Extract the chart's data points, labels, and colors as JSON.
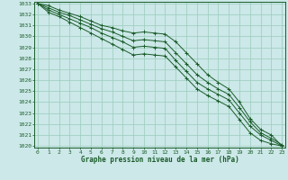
{
  "title": "Graphe pression niveau de la mer (hPa)",
  "bg_color": "#cce8e8",
  "grid_color": "#99ccbb",
  "line_color": "#1a5c2a",
  "x_ticks": [
    0,
    1,
    2,
    3,
    4,
    5,
    6,
    7,
    8,
    9,
    10,
    11,
    12,
    13,
    14,
    15,
    16,
    17,
    18,
    19,
    20,
    21,
    22,
    23
  ],
  "y_min": 1020,
  "y_max": 1033,
  "y_ticks": [
    1020,
    1021,
    1022,
    1023,
    1024,
    1025,
    1026,
    1027,
    1028,
    1029,
    1030,
    1031,
    1032,
    1033
  ],
  "series": [
    [
      1033.0,
      1032.8,
      1032.4,
      1032.1,
      1031.8,
      1031.4,
      1031.0,
      1030.8,
      1030.5,
      1030.3,
      1030.4,
      1030.3,
      1030.2,
      1029.5,
      1028.5,
      1027.5,
      1026.5,
      1025.8,
      1025.2,
      1024.0,
      1022.5,
      1021.5,
      1021.0,
      1020.0
    ],
    [
      1033.0,
      1032.6,
      1032.2,
      1031.9,
      1031.5,
      1031.1,
      1030.7,
      1030.4,
      1030.0,
      1029.6,
      1029.7,
      1029.6,
      1029.5,
      1028.5,
      1027.5,
      1026.5,
      1025.8,
      1025.2,
      1024.7,
      1023.5,
      1022.2,
      1021.2,
      1020.7,
      1020.1
    ],
    [
      1033.0,
      1032.4,
      1032.0,
      1031.6,
      1031.2,
      1030.8,
      1030.3,
      1029.9,
      1029.5,
      1029.0,
      1029.1,
      1029.0,
      1028.9,
      1027.8,
      1026.8,
      1025.8,
      1025.2,
      1024.7,
      1024.2,
      1023.0,
      1021.8,
      1021.0,
      1020.5,
      1020.0
    ],
    [
      1033.0,
      1032.2,
      1031.8,
      1031.3,
      1030.8,
      1030.3,
      1029.8,
      1029.3,
      1028.8,
      1028.3,
      1028.4,
      1028.3,
      1028.2,
      1027.2,
      1026.2,
      1025.2,
      1024.6,
      1024.1,
      1023.6,
      1022.4,
      1021.2,
      1020.5,
      1020.2,
      1020.0
    ]
  ]
}
